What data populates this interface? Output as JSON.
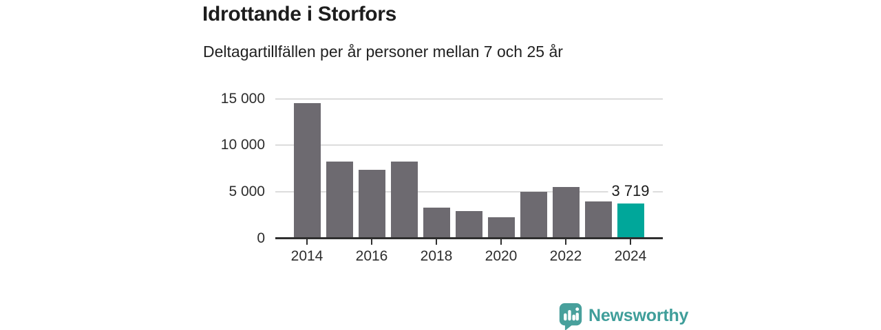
{
  "header": {
    "title": "Idrottande i Storfors",
    "subtitle": "Deltagartillfällen per år personer mellan 7 och 25 år"
  },
  "chart_data": {
    "type": "bar",
    "categories": [
      2014,
      2015,
      2016,
      2017,
      2018,
      2019,
      2020,
      2021,
      2022,
      2023,
      2024
    ],
    "values": [
      14550,
      8270,
      7360,
      8220,
      3280,
      2950,
      2270,
      5030,
      5510,
      3980,
      3719
    ],
    "title": "Idrottande i Storfors",
    "subtitle": "Deltagartillfällen per år personer mellan 7 och 25 år",
    "xlabel": "",
    "ylabel": "",
    "ylim": [
      0,
      15000
    ],
    "grid": true,
    "legend_position": "none",
    "y_ticks": [
      {
        "value": 0,
        "label": "0"
      },
      {
        "value": 5000,
        "label": "5 000"
      },
      {
        "value": 10000,
        "label": "10 000"
      },
      {
        "value": 15000,
        "label": "15 000"
      }
    ],
    "x_ticks": [
      {
        "year": 2014,
        "label": "2014"
      },
      {
        "year": 2016,
        "label": "2016"
      },
      {
        "year": 2018,
        "label": "2018"
      },
      {
        "year": 2020,
        "label": "2020"
      },
      {
        "year": 2022,
        "label": "2022"
      },
      {
        "year": 2024,
        "label": "2024"
      }
    ],
    "highlight_index": 10,
    "highlight_value_label": "3 719",
    "colors": {
      "bar": "#6d6a70",
      "highlight_bar": "#00a79a",
      "axis": "#2f2f2f",
      "grid": "#dcdcdc",
      "text": "#2d2d2d"
    }
  },
  "footer": {
    "brand_name": "Newsworthy",
    "brand_color": "#3f9e9a",
    "icon": "newsworthy-speech-bubble-bar-chart-icon",
    "icon_color": "#48a09c"
  }
}
